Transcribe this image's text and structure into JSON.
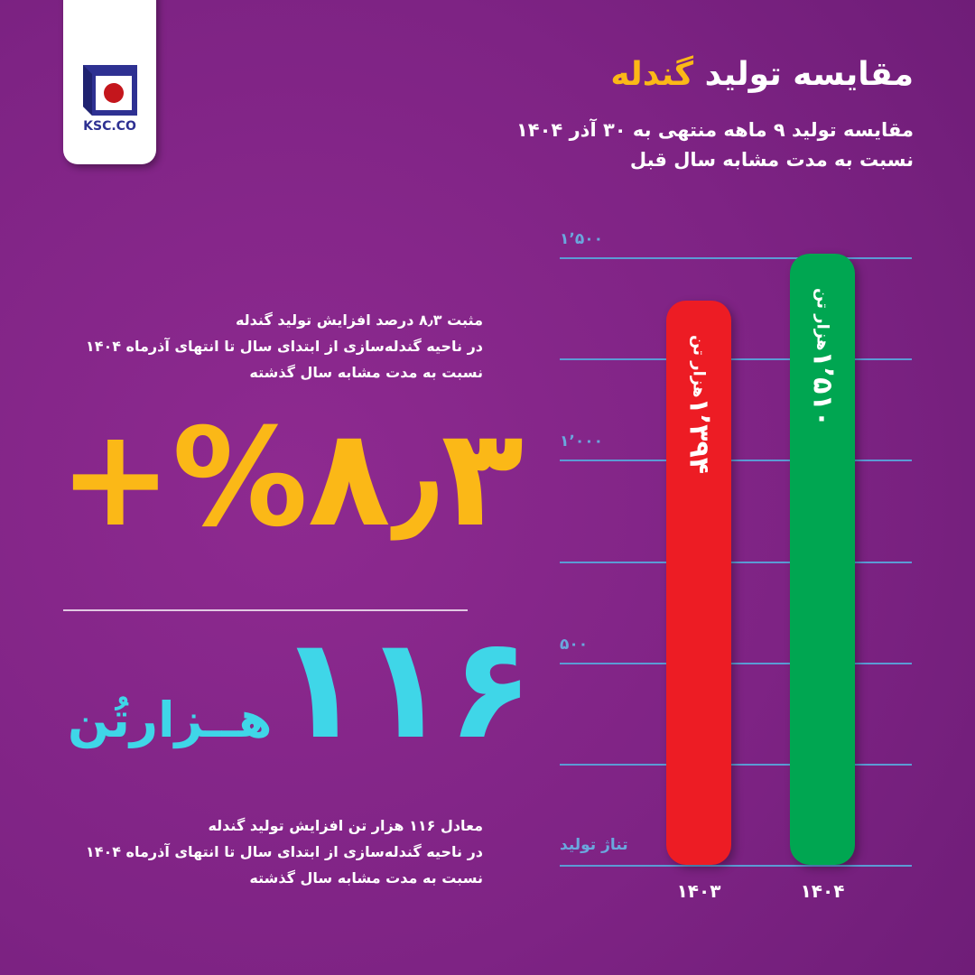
{
  "logo": {
    "text": "KSC.CO"
  },
  "header": {
    "title_main": "مقایسه تولید",
    "title_highlight": "گندله",
    "subtitle_line1": "مقایسه تولید ۹ ماهه منتهی به ۳۰ آذر ۱۴۰۴",
    "subtitle_line2": "نسبت به مدت مشابه سال قبل"
  },
  "highlight_percent": {
    "intro": [
      "مثبت ۸٫۳ درصد افزایش تولید گندله",
      "در ناحیه گندله‌سازی از ابتدای سال تا انتهای آذرماه ۱۴۰۴",
      "نسبت به مدت مشابه سال گذشته"
    ],
    "value": "+%۸٫۳"
  },
  "highlight_tons": {
    "value": "۱۱۶",
    "unit": "هــزارتُن",
    "note": [
      "معادل ۱۱۶ هزار تن افزایش تولید گندله",
      "در ناحیه گندله‌سازی از ابتدای سال تا انتهای آذرماه ۱۴۰۴",
      "نسبت به مدت مشابه سال گذشته"
    ]
  },
  "colors": {
    "background": "#7e2384",
    "accent": "#fbb817",
    "cyan": "#3fd6e8",
    "grid": "#5b9bd5"
  },
  "chart_data": {
    "type": "bar",
    "ylabel": "تناژ تولید",
    "ylim": [
      0,
      1500
    ],
    "yticks": [
      500,
      1000,
      1500
    ],
    "ytick_labels": [
      "۵۰۰",
      "۱٬۰۰۰",
      "۱٬۵۰۰"
    ],
    "grid": true,
    "categories": [
      "۱۴۰۳",
      "۱۴۰۴"
    ],
    "values": [
      1394,
      1510
    ],
    "value_labels": [
      "۱٬۳۹۴",
      "۱٬۵۱۰"
    ],
    "value_unit": "هزار تن",
    "bar_colors": [
      "#ed1c24",
      "#00a651"
    ]
  }
}
